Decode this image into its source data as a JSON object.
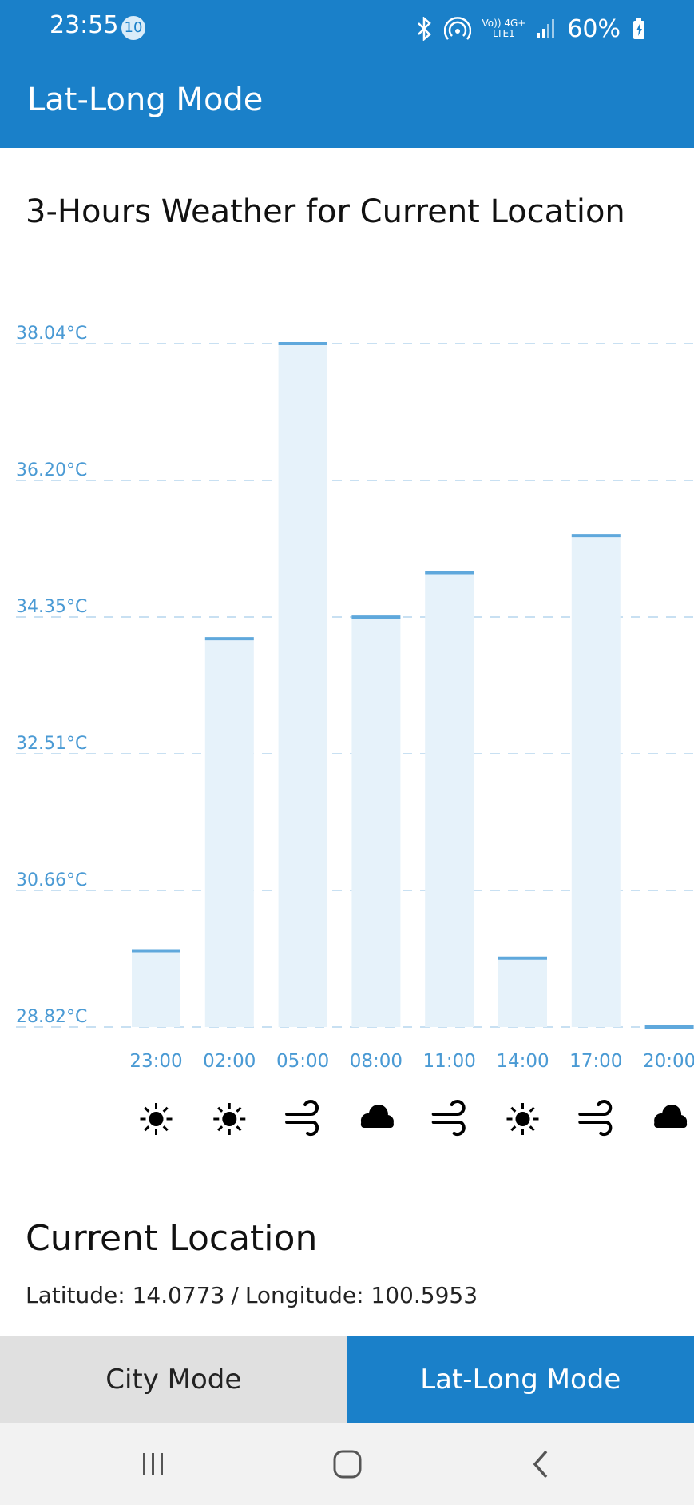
{
  "status_bar": {
    "time": "23:55",
    "notification_count": "10",
    "network_top": "Vo)) 4G+",
    "network_bottom": "LTE1",
    "battery": "60%",
    "icons": [
      "bluetooth-icon",
      "hotspot-icon",
      "signal-icon",
      "battery-charging-icon"
    ]
  },
  "app_bar": {
    "title": "Lat-Long Mode"
  },
  "section": {
    "title": "3-Hours Weather for Current Location"
  },
  "chart_data": {
    "type": "bar",
    "categories": [
      "23:00",
      "02:00",
      "05:00",
      "08:00",
      "11:00",
      "14:00",
      "17:00",
      "20:00"
    ],
    "values": [
      29.85,
      34.06,
      38.04,
      34.35,
      34.95,
      29.75,
      35.45,
      28.82
    ],
    "y_ticks": [
      "28.82°C",
      "30.66°C",
      "32.51°C",
      "34.35°C",
      "36.20°C",
      "38.04°C"
    ],
    "ylim": [
      28.82,
      38.04
    ],
    "grid": true,
    "weather_icons": [
      "sun-icon",
      "sun-icon",
      "wind-icon",
      "cloud-icon",
      "wind-icon",
      "sun-icon",
      "wind-icon",
      "cloud-icon"
    ],
    "colors": {
      "bar_fill": "#e6f2fa",
      "bar_top": "#5fa8dc",
      "label": "#4a9ad4",
      "grid": "#c8e0f2"
    }
  },
  "location": {
    "heading": "Current Location",
    "latitude_text": "Latitude: 14.0773",
    "separator": "/",
    "longitude_text": "Longitude: 100.5953"
  },
  "tabs": [
    {
      "label": "City Mode",
      "active": false
    },
    {
      "label": "Lat-Long Mode",
      "active": true
    }
  ],
  "nav": {
    "buttons": [
      "recents-icon",
      "home-icon",
      "back-icon"
    ]
  },
  "colors": {
    "primary": "#1a80c9"
  }
}
